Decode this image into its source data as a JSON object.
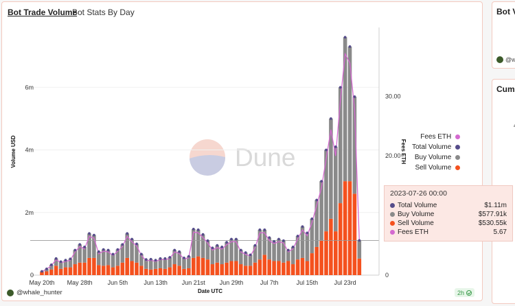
{
  "tabs": {
    "active": "Bot Trade Volume",
    "other": "Bot Stats By Day"
  },
  "footer": {
    "user": "@whale_hunter",
    "age": "2h"
  },
  "side_cards": [
    {
      "title": "Bot Vo",
      "user": "@wh"
    },
    {
      "title": "Cumu",
      "tick": "4"
    }
  ],
  "watermark": "Dune",
  "colors": {
    "sell": "#f4511e",
    "buy": "#8a8a8a",
    "total": "#554c8a",
    "fees": "#d46ad0"
  },
  "legend": [
    "Fees ETH",
    "Total Volume",
    "Buy Volume",
    "Sell Volume"
  ],
  "tooltip": {
    "date": "2023-07-26 00:00",
    "rows": [
      {
        "label": "Total Volume",
        "value": "$1.11m",
        "color": "#554c8a"
      },
      {
        "label": "Buy Volume",
        "value": "$577.91k",
        "color": "#8a8a8a"
      },
      {
        "label": "Sell Volume",
        "value": "$530.55k",
        "color": "#f4511e"
      },
      {
        "label": "Fees ETH",
        "value": "5.67",
        "color": "#d46ad0"
      }
    ]
  },
  "chart_data": {
    "type": "bar",
    "title": "Bot Trade Volume",
    "xlabel": "Date UTC",
    "ylabel": "Volume USD",
    "y2label": "Fees ETH",
    "ylim": [
      0,
      8000000
    ],
    "y2lim": [
      0,
      42
    ],
    "yticks": [
      {
        "value": 0,
        "label": "0"
      },
      {
        "value": 2000000,
        "label": "2m"
      },
      {
        "value": 4000000,
        "label": "4m"
      },
      {
        "value": 6000000,
        "label": "6m"
      }
    ],
    "y2ticks": [
      {
        "value": 0,
        "label": "0"
      },
      {
        "value": 20,
        "label": "20.00"
      },
      {
        "value": 30,
        "label": "30.00"
      }
    ],
    "xticks": [
      {
        "index": 0,
        "label": "May 20th"
      },
      {
        "index": 8,
        "label": "May 28th"
      },
      {
        "index": 16,
        "label": "Jun 5th"
      },
      {
        "index": 24,
        "label": "Jun 13th"
      },
      {
        "index": 32,
        "label": "Jun 21st"
      },
      {
        "index": 40,
        "label": "Jun 29th"
      },
      {
        "index": 48,
        "label": "Jul 7th"
      },
      {
        "index": 56,
        "label": "Jul 15th"
      },
      {
        "index": 64,
        "label": "Jul 23rd"
      }
    ],
    "categories": [
      "2023-05-20",
      "2023-05-21",
      "2023-05-22",
      "2023-05-23",
      "2023-05-24",
      "2023-05-25",
      "2023-05-26",
      "2023-05-27",
      "2023-05-28",
      "2023-05-29",
      "2023-05-30",
      "2023-05-31",
      "2023-06-01",
      "2023-06-02",
      "2023-06-03",
      "2023-06-04",
      "2023-06-05",
      "2023-06-06",
      "2023-06-07",
      "2023-06-08",
      "2023-06-09",
      "2023-06-10",
      "2023-06-11",
      "2023-06-12",
      "2023-06-13",
      "2023-06-14",
      "2023-06-15",
      "2023-06-16",
      "2023-06-17",
      "2023-06-18",
      "2023-06-19",
      "2023-06-20",
      "2023-06-21",
      "2023-06-22",
      "2023-06-23",
      "2023-06-24",
      "2023-06-25",
      "2023-06-26",
      "2023-06-27",
      "2023-06-28",
      "2023-06-29",
      "2023-06-30",
      "2023-07-01",
      "2023-07-02",
      "2023-07-03",
      "2023-07-04",
      "2023-07-05",
      "2023-07-06",
      "2023-07-07",
      "2023-07-08",
      "2023-07-09",
      "2023-07-10",
      "2023-07-11",
      "2023-07-12",
      "2023-07-13",
      "2023-07-14",
      "2023-07-15",
      "2023-07-16",
      "2023-07-17",
      "2023-07-18",
      "2023-07-19",
      "2023-07-20",
      "2023-07-21",
      "2023-07-22",
      "2023-07-23",
      "2023-07-24",
      "2023-07-25",
      "2023-07-26"
    ],
    "series": [
      {
        "name": "Sell Volume",
        "values": [
          100000,
          120000,
          180000,
          300000,
          200000,
          250000,
          250000,
          350000,
          400000,
          400000,
          550000,
          550000,
          320000,
          300000,
          320000,
          250000,
          300000,
          400000,
          550000,
          450000,
          400000,
          300000,
          200000,
          180000,
          200000,
          220000,
          200000,
          250000,
          350000,
          300000,
          200000,
          220000,
          550000,
          600000,
          550000,
          500000,
          350000,
          400000,
          350000,
          400000,
          450000,
          450000,
          350000,
          300000,
          300000,
          400000,
          500000,
          650000,
          500000,
          450000,
          450000,
          400000,
          450000,
          350000,
          500000,
          550000,
          450000,
          700000,
          900000,
          1100000,
          1400000,
          1800000,
          1400000,
          2300000,
          3000000,
          3000000,
          2600000,
          530550
        ]
      },
      {
        "name": "Buy Volume",
        "values": [
          20000,
          80000,
          150000,
          230000,
          230000,
          230000,
          270000,
          450000,
          580000,
          500000,
          780000,
          730000,
          430000,
          520000,
          480000,
          420000,
          520000,
          580000,
          780000,
          700000,
          600000,
          370000,
          300000,
          330000,
          280000,
          310000,
          330000,
          320000,
          450000,
          450000,
          350000,
          380000,
          920000,
          850000,
          750000,
          600000,
          520000,
          550000,
          550000,
          650000,
          700000,
          700000,
          450000,
          420000,
          350000,
          550000,
          950000,
          800000,
          700000,
          630000,
          700000,
          700000,
          350000,
          550000,
          750000,
          1000000,
          900000,
          1100000,
          1500000,
          1900000,
          2600000,
          3200000,
          2700000,
          3700000,
          4600000,
          4300000,
          3100000,
          577910
        ]
      },
      {
        "name": "Total Volume",
        "values": [
          120000,
          200000,
          330000,
          530000,
          430000,
          480000,
          520000,
          800000,
          980000,
          900000,
          1330000,
          1280000,
          750000,
          820000,
          800000,
          670000,
          820000,
          980000,
          1330000,
          1150000,
          1000000,
          670000,
          500000,
          510000,
          480000,
          530000,
          530000,
          570000,
          800000,
          750000,
          550000,
          600000,
          1470000,
          1450000,
          1300000,
          1100000,
          870000,
          950000,
          900000,
          1050000,
          1150000,
          1150000,
          800000,
          720000,
          650000,
          950000,
          1450000,
          1450000,
          1200000,
          1080000,
          1150000,
          1100000,
          800000,
          900000,
          1250000,
          1550000,
          1350000,
          1800000,
          2400000,
          3000000,
          4000000,
          5000000,
          4100000,
          6000000,
          7600000,
          7300000,
          5700000,
          1108460
        ]
      },
      {
        "name": "Fees ETH",
        "axis": "right",
        "values": [
          0.6,
          1.0,
          1.6,
          2.6,
          2.1,
          2.3,
          2.5,
          3.9,
          4.8,
          4.4,
          6.5,
          6.2,
          3.6,
          4.0,
          3.9,
          3.3,
          4.0,
          4.8,
          6.5,
          5.6,
          4.9,
          3.3,
          2.4,
          2.5,
          2.3,
          2.6,
          2.6,
          2.8,
          3.9,
          3.6,
          2.7,
          2.9,
          7.2,
          7.1,
          6.3,
          5.4,
          4.2,
          4.6,
          4.4,
          5.1,
          5.6,
          5.6,
          3.9,
          3.5,
          3.2,
          4.6,
          7.1,
          7.1,
          5.8,
          5.3,
          5.6,
          5.4,
          3.9,
          4.4,
          6.1,
          7.6,
          6.6,
          8.8,
          11.7,
          14.6,
          19.5,
          24.4,
          20.0,
          29.3,
          37.1,
          35.6,
          27.8,
          5.67
        ]
      }
    ]
  }
}
